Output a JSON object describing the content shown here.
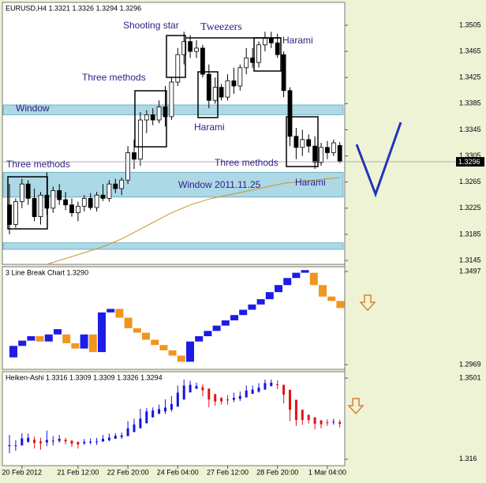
{
  "chart_data": [
    {
      "type": "candlestick",
      "title": "EURUSD,H4  1.3321 1.3326 1.3294 1.3296",
      "open": [
        1.323,
        1.32,
        1.3235,
        1.3262,
        1.324,
        1.3212,
        1.3245,
        1.3225,
        1.3252,
        1.3238,
        1.323,
        1.3218,
        1.3228,
        1.324,
        1.3226,
        1.3245,
        1.324,
        1.3262,
        1.3255,
        1.3268,
        1.331,
        1.33,
        1.336,
        1.3368,
        1.336,
        1.338,
        1.3365,
        1.3418,
        1.346,
        1.348,
        1.3465,
        1.347,
        1.343,
        1.339,
        1.341,
        1.3395,
        1.342,
        1.3412,
        1.344,
        1.3455,
        1.3448,
        1.3475,
        1.3485,
        1.3478,
        1.346,
        1.3405,
        1.3335,
        1.3318,
        1.333,
        1.332,
        1.3295,
        1.3318,
        1.331,
        1.3321
      ],
      "high": [
        1.3262,
        1.324,
        1.327,
        1.3268,
        1.3255,
        1.325,
        1.328,
        1.3258,
        1.3262,
        1.325,
        1.324,
        1.3235,
        1.3245,
        1.3248,
        1.325,
        1.3262,
        1.3268,
        1.327,
        1.3272,
        1.332,
        1.333,
        1.3372,
        1.3375,
        1.3378,
        1.339,
        1.3412,
        1.3425,
        1.347,
        1.3495,
        1.349,
        1.3482,
        1.3475,
        1.3445,
        1.3425,
        1.3415,
        1.343,
        1.344,
        1.3445,
        1.347,
        1.347,
        1.348,
        1.3495,
        1.3495,
        1.3492,
        1.3465,
        1.341,
        1.3348,
        1.3345,
        1.3338,
        1.3335,
        1.3325,
        1.3328,
        1.333,
        1.3326
      ],
      "low": [
        1.3185,
        1.3195,
        1.3225,
        1.323,
        1.3205,
        1.32,
        1.3215,
        1.3218,
        1.323,
        1.3222,
        1.3212,
        1.3205,
        1.322,
        1.3222,
        1.322,
        1.3236,
        1.3235,
        1.3248,
        1.3245,
        1.3262,
        1.3285,
        1.329,
        1.334,
        1.3352,
        1.3355,
        1.335,
        1.336,
        1.3412,
        1.3445,
        1.3455,
        1.3455,
        1.3425,
        1.3378,
        1.3385,
        1.339,
        1.339,
        1.34,
        1.3405,
        1.343,
        1.344,
        1.344,
        1.3465,
        1.347,
        1.3455,
        1.3395,
        1.332,
        1.33,
        1.3305,
        1.331,
        1.3285,
        1.329,
        1.33,
        1.3305,
        1.3294
      ],
      "close": [
        1.32,
        1.3235,
        1.3262,
        1.324,
        1.3212,
        1.3245,
        1.3225,
        1.3252,
        1.3238,
        1.323,
        1.3218,
        1.3228,
        1.324,
        1.3226,
        1.3245,
        1.324,
        1.3262,
        1.3255,
        1.3268,
        1.331,
        1.33,
        1.336,
        1.3368,
        1.336,
        1.338,
        1.3365,
        1.3418,
        1.346,
        1.348,
        1.3465,
        1.347,
        1.343,
        1.339,
        1.341,
        1.3395,
        1.342,
        1.3412,
        1.344,
        1.3455,
        1.3448,
        1.3475,
        1.3485,
        1.3478,
        1.346,
        1.3405,
        1.3335,
        1.3318,
        1.333,
        1.332,
        1.3295,
        1.3318,
        1.331,
        1.3325,
        1.3296
      ],
      "up_color": "#ffffff",
      "down_color": "#000000",
      "ma": {
        "color": "#c8962a",
        "values": [
          null,
          null,
          null,
          null,
          null,
          null,
          1.3139,
          1.3142,
          1.3145,
          1.3148,
          1.3151,
          1.3154,
          1.3157,
          1.316,
          1.3163,
          1.3166,
          1.317,
          1.3174,
          1.3178,
          1.3183,
          1.3188,
          1.3193,
          1.3198,
          1.3203,
          1.3208,
          1.3213,
          1.3218,
          1.3222,
          1.3226,
          1.323,
          1.3233,
          1.3236,
          1.3239,
          1.3241,
          1.3243,
          1.3245,
          1.3247,
          1.3249,
          1.3251,
          1.3253,
          1.3255,
          1.3257,
          1.3259,
          1.3261,
          1.3263,
          1.3264,
          1.3265,
          1.3266,
          1.3267,
          1.3268,
          1.3269,
          1.327,
          1.3271,
          1.3272
        ]
      },
      "zones": [
        {
          "from": 1.3368,
          "to": 1.3383
        },
        {
          "from": 1.3242,
          "to": 1.328
        },
        {
          "from": 1.3162,
          "to": 1.3172
        }
      ],
      "zone_color": "#add8e6",
      "last_price": 1.3296,
      "annotations": [
        "Shooting star",
        "Tweezers",
        "Harami",
        "Three methods",
        "Window",
        "Harami",
        "Three methods",
        "Three methods",
        "Window 2011.11.25",
        "Harami"
      ],
      "ylim": [
        1.3139,
        1.354
      ],
      "yticks": [
        1.3505,
        1.3465,
        1.3425,
        1.3385,
        1.3345,
        1.3305,
        1.3265,
        1.3225,
        1.3185,
        1.3145
      ]
    },
    {
      "type": "linebreak",
      "title": "3 Line Break Chart 1.3290",
      "open": [
        1.301,
        1.3075,
        1.3105,
        1.313,
        1.31,
        1.314,
        1.314,
        1.309,
        1.306,
        1.314,
        1.304,
        1.3265,
        1.3285,
        1.3235,
        1.3175,
        1.315,
        1.311,
        1.308,
        1.305,
        1.302,
        1.2985,
        1.31,
        1.313,
        1.316,
        1.319,
        1.322,
        1.325,
        1.328,
        1.331,
        1.334,
        1.338,
        1.342,
        1.346,
        1.349,
        1.349,
        1.342,
        1.3355,
        1.333
      ],
      "close": [
        1.3075,
        1.3105,
        1.313,
        1.31,
        1.314,
        1.317,
        1.309,
        1.306,
        1.314,
        1.304,
        1.3265,
        1.3285,
        1.3235,
        1.3175,
        1.315,
        1.311,
        1.308,
        1.305,
        1.302,
        1.2985,
        1.31,
        1.313,
        1.316,
        1.319,
        1.322,
        1.325,
        1.328,
        1.331,
        1.334,
        1.338,
        1.342,
        1.346,
        1.349,
        1.3505,
        1.342,
        1.3355,
        1.333,
        1.329
      ],
      "up_color": "#1c1ce6",
      "down_color": "#f0961e",
      "ylim": [
        1.2942,
        1.3524
      ],
      "yticks": [
        1.3497,
        1.2969
      ]
    },
    {
      "type": "heikin-ashi",
      "title": "Heiken-Ashi 1.3316 1.3309 1.3309 1.3326 1.3294",
      "categories": [
        null,
        null,
        "20 Feb 2012",
        null,
        null,
        null,
        null,
        null,
        null,
        null,
        null,
        "21 Feb 12:00",
        null,
        null,
        null,
        null,
        null,
        null,
        null,
        "22 Feb 20:00",
        null,
        null,
        null,
        null,
        null,
        null,
        null,
        "24 Feb 04:00",
        null,
        null,
        null,
        null,
        null,
        null,
        null,
        "27 Feb 12:00",
        null,
        null,
        null,
        null,
        null,
        null,
        null,
        "28 Feb 20:00",
        null,
        null,
        null,
        null,
        null,
        null,
        null,
        "1 Mar 04:00",
        null,
        null
      ],
      "open": [
        1.3215,
        1.3217,
        1.3218,
        1.3233,
        1.3242,
        1.3235,
        1.3231,
        1.3236,
        1.3237,
        1.3242,
        1.3238,
        1.3232,
        1.3227,
        1.323,
        1.3232,
        1.3234,
        1.324,
        1.3246,
        1.3253,
        1.3257,
        1.3274,
        1.329,
        1.3311,
        1.3336,
        1.3351,
        1.3361,
        1.3369,
        1.3381,
        1.3411,
        1.3441,
        1.3457,
        1.3463,
        1.3457,
        1.3434,
        1.3419,
        1.3411,
        1.341,
        1.3414,
        1.342,
        1.3435,
        1.3444,
        1.3453,
        1.3467,
        1.3475,
        1.3473,
        1.3452,
        1.341,
        1.3368,
        1.3347,
        1.3336,
        1.3323,
        1.3315,
        1.3315,
        1.3316
      ],
      "high": [
        1.3262,
        1.324,
        1.327,
        1.3268,
        1.3255,
        1.325,
        1.328,
        1.3258,
        1.3262,
        1.325,
        1.324,
        1.3235,
        1.3245,
        1.3248,
        1.325,
        1.3262,
        1.3268,
        1.327,
        1.3272,
        1.332,
        1.333,
        1.3372,
        1.3375,
        1.3378,
        1.339,
        1.3412,
        1.3425,
        1.347,
        1.3495,
        1.349,
        1.3482,
        1.3475,
        1.3457,
        1.3434,
        1.3419,
        1.343,
        1.344,
        1.3445,
        1.347,
        1.347,
        1.348,
        1.3495,
        1.3495,
        1.3492,
        1.3473,
        1.3452,
        1.341,
        1.3368,
        1.3347,
        1.3336,
        1.3325,
        1.3328,
        1.333,
        1.3326
      ],
      "low": [
        1.3185,
        1.3195,
        1.3218,
        1.323,
        1.3205,
        1.32,
        1.3215,
        1.3218,
        1.323,
        1.3222,
        1.3212,
        1.3205,
        1.322,
        1.3222,
        1.322,
        1.3236,
        1.3235,
        1.3248,
        1.3245,
        1.3257,
        1.3274,
        1.329,
        1.3311,
        1.3336,
        1.3351,
        1.335,
        1.336,
        1.3381,
        1.3411,
        1.3441,
        1.3455,
        1.3425,
        1.3378,
        1.3385,
        1.339,
        1.339,
        1.34,
        1.3405,
        1.342,
        1.3435,
        1.344,
        1.3453,
        1.3467,
        1.3455,
        1.3395,
        1.332,
        1.33,
        1.3305,
        1.331,
        1.3285,
        1.329,
        1.33,
        1.3305,
        1.3294
      ],
      "close": [
        1.3219,
        1.3218,
        1.3248,
        1.325,
        1.3228,
        1.3227,
        1.3241,
        1.3238,
        1.3246,
        1.3235,
        1.3225,
        1.3222,
        1.3233,
        1.3234,
        1.3235,
        1.3246,
        1.3251,
        1.3259,
        1.326,
        1.329,
        1.3306,
        1.3331,
        1.3361,
        1.3365,
        1.3371,
        1.3377,
        1.3392,
        1.344,
        1.347,
        1.3473,
        1.3468,
        1.345,
        1.3411,
        1.3403,
        1.3403,
        1.3409,
        1.3418,
        1.3426,
        1.3449,
        1.3453,
        1.3461,
        1.348,
        1.3482,
        1.3471,
        1.3431,
        1.3368,
        1.3325,
        1.3325,
        1.3325,
        1.3309,
        1.3307,
        1.3314,
        1.3318,
        1.3309
      ],
      "up_color": "#1414e0",
      "down_color": "#e01414",
      "ylim": [
        1.3133,
        1.3528
      ],
      "yticks": [
        1.3501,
        1.316
      ]
    }
  ]
}
